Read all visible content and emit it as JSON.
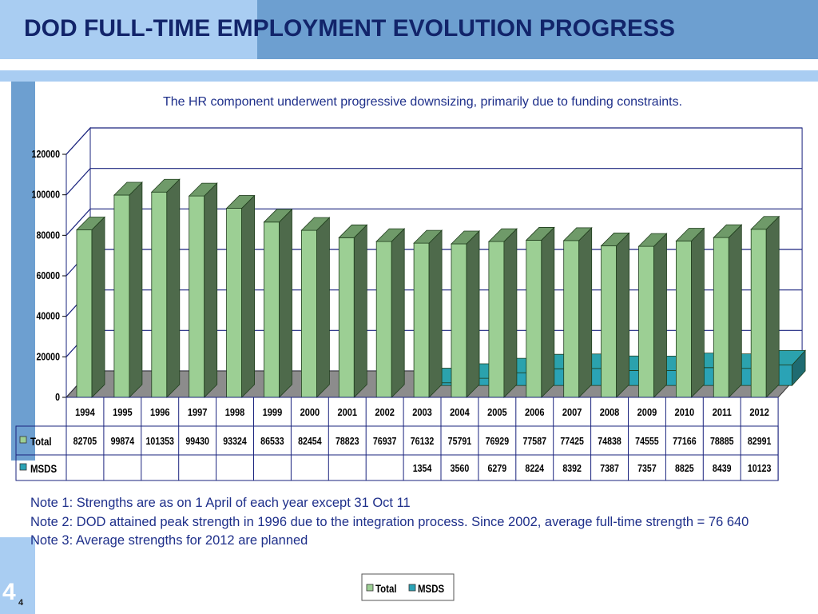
{
  "header": {
    "title": "DOD FULL-TIME EMPLOYMENT EVOLUTION PROGRESS"
  },
  "subtitle": "The HR component underwent progressive downsizing, primarily due to funding constraints.",
  "notes": [
    "Note 1:  Strengths are as on 1 April of each year except 31 Oct 11",
    "Note 2:  DOD attained peak strength in 1996 due to the integration process.  Since 2002, average full-time strength = 76 640",
    "Note 3:  Average strengths for 2012 are planned"
  ],
  "page_number": "4",
  "page_number_small": "4",
  "colors": {
    "header_light": "#a9cdf2",
    "header_dark": "#6d9fd0",
    "title_text": "#12246a",
    "total_front": "#9ccf94",
    "total_side": "#4e6a4b",
    "total_top": "#6f9a69",
    "msds_front": "#2aa3b6",
    "msds_side": "#1f6b71",
    "msds_top": "#2ba2ad",
    "gridline": "#1a237e"
  },
  "chart_data": {
    "type": "bar",
    "categories": [
      "1994",
      "1995",
      "1996",
      "1997",
      "1998",
      "1999",
      "2000",
      "2001",
      "2002",
      "2003",
      "2004",
      "2005",
      "2006",
      "2007",
      "2008",
      "2009",
      "2010",
      "2011",
      "2012"
    ],
    "series": [
      {
        "name": "Total",
        "values": [
          82705,
          99874,
          101353,
          99430,
          93324,
          86533,
          82454,
          78823,
          76937,
          76132,
          75791,
          76929,
          77587,
          77425,
          74838,
          74555,
          77166,
          78885,
          82991
        ]
      },
      {
        "name": "MSDS",
        "values": [
          null,
          null,
          null,
          null,
          null,
          null,
          null,
          null,
          null,
          1354,
          3560,
          6279,
          8224,
          8392,
          7387,
          7357,
          8825,
          8439,
          10123
        ]
      }
    ],
    "y_ticks": [
      "0",
      "20000",
      "40000",
      "60000",
      "80000",
      "100000",
      "120000"
    ],
    "ylim": [
      0,
      120000
    ],
    "grid": true,
    "legend": "bottom-center",
    "data_table": true,
    "style": "3d-column"
  }
}
